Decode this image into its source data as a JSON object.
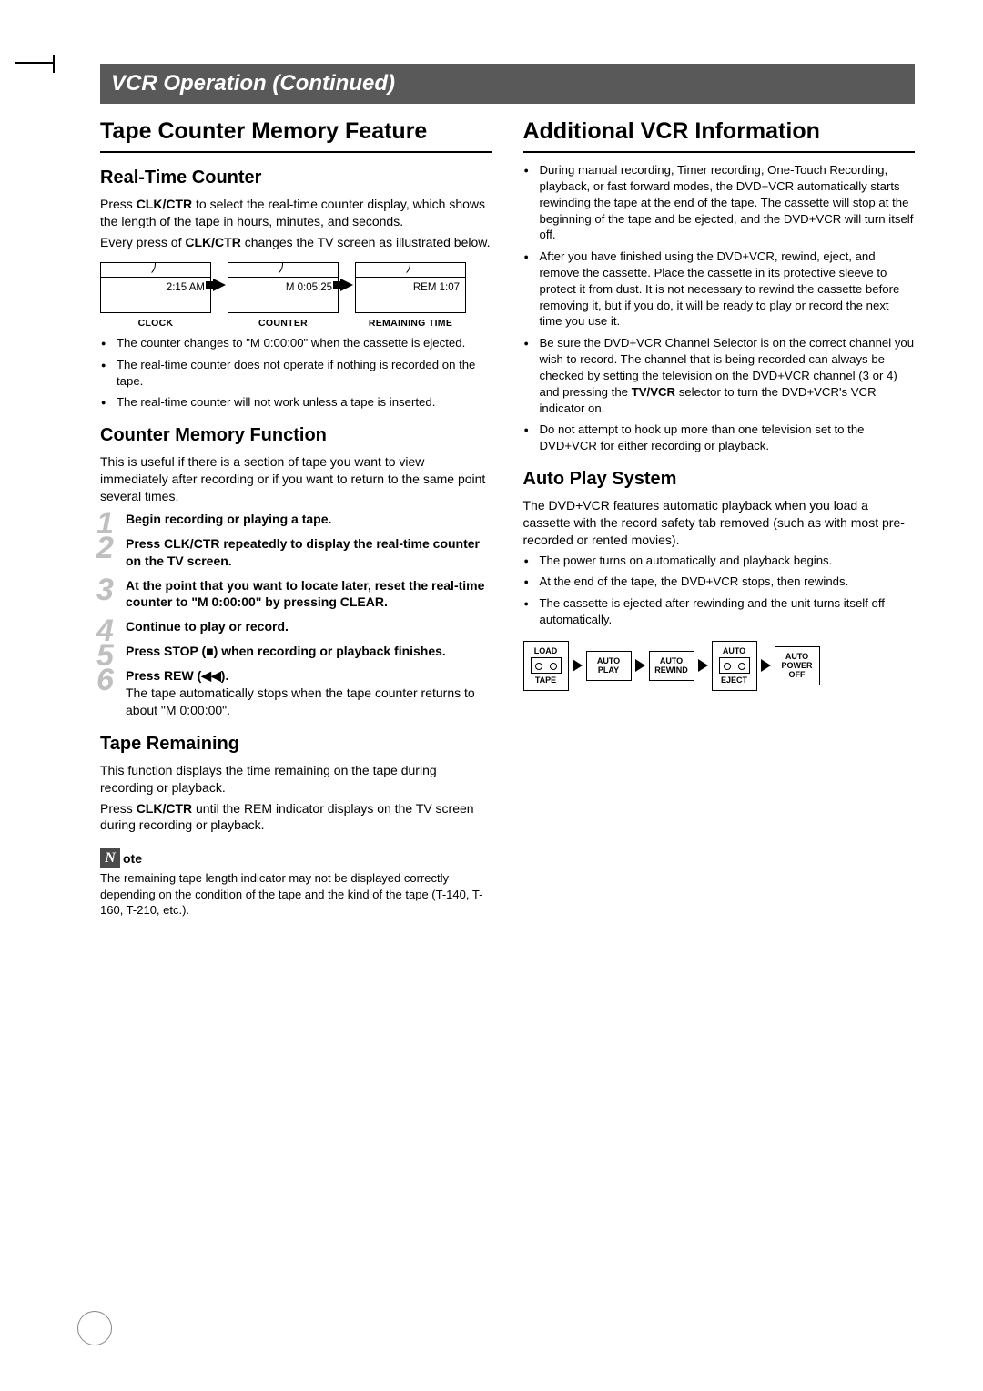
{
  "header": {
    "title": "VCR Operation (Continued)"
  },
  "left": {
    "section_title": "Tape Counter Memory Feature",
    "realtime": {
      "heading": "Real-Time Counter",
      "p1a": "Press ",
      "p1b": "CLK/CTR",
      "p1c": " to select the real-time counter display, which shows the length of the tape in hours, minutes, and seconds.",
      "p2a": "Every press of ",
      "p2b": "CLK/CTR",
      "p2c": " changes the TV screen as illustrated below.",
      "panels": [
        {
          "value": "2:15 AM",
          "label": "CLOCK"
        },
        {
          "value": "M 0:05:25",
          "label": "COUNTER"
        },
        {
          "value": "REM 1:07",
          "label": "REMAINING TIME"
        }
      ],
      "bullets": [
        "The counter changes to \"M 0:00:00\" when the cassette is ejected.",
        "The real-time counter does not operate if nothing is recorded on the tape.",
        "The real-time counter will not work unless a tape is inserted."
      ]
    },
    "memory": {
      "heading": "Counter Memory Function",
      "intro": "This is useful if there is a section of tape you want to view immediately after recording or if you want to return to the same point several times.",
      "steps": [
        {
          "n": "1",
          "bold": "Begin recording or playing a tape.",
          "rest": ""
        },
        {
          "n": "2",
          "bold": "Press CLK/CTR repeatedly to display the real-time counter on the TV screen.",
          "rest": ""
        },
        {
          "n": "3",
          "bold": "At the point that you want to locate later, reset the real-time counter to \"M 0:00:00\" by pressing CLEAR.",
          "rest": ""
        },
        {
          "n": "4",
          "bold": "Continue to play or record.",
          "rest": ""
        },
        {
          "n": "5",
          "bold": "Press STOP (■) when recording or playback finishes.",
          "rest": ""
        },
        {
          "n": "6",
          "bold": "Press REW (◀◀).",
          "rest": "The tape automatically stops when the tape counter returns to about \"M 0:00:00\"."
        }
      ]
    },
    "remaining": {
      "heading": "Tape Remaining",
      "p1": "This function displays the time remaining on the tape during recording or playback.",
      "p2a": "Press ",
      "p2b": "CLK/CTR",
      "p2c": " until the REM indicator displays on the TV screen during recording or playback."
    },
    "note": {
      "icon": "N",
      "suffix": "ote",
      "body": "The remaining tape length indicator may not be displayed correctly depending on the condition of the tape and the kind of the tape (T-140, T-160, T-210, etc.)."
    }
  },
  "right": {
    "section_title": "Additional VCR Information",
    "bullets": [
      "During manual recording, Timer recording, One-Touch Recording, playback, or fast forward modes, the DVD+VCR automatically starts rewinding the tape at the end of the tape. The cassette will stop at the beginning of the tape and be ejected, and the DVD+VCR will turn itself off.",
      "After you have finished using the DVD+VCR, rewind, eject, and remove the cassette. Place the cassette in its protective sleeve to protect it from dust. It is not necessary to rewind the cassette before removing it, but if you do, it will be ready to play or record the next time you use it.",
      "",
      "Do not attempt to hook up more than one television set to the DVD+VCR for either recording or playback."
    ],
    "bullet3": {
      "a": "Be sure the DVD+VCR Channel Selector is on the correct channel you wish to record. The channel that is being recorded can always be checked by setting the television on the DVD+VCR channel (3 or 4) and pressing the ",
      "b": "TV/VCR",
      "c": " selector to turn the DVD+VCR's VCR indicator on."
    },
    "autoplay": {
      "heading": "Auto Play System",
      "intro": "The DVD+VCR features automatic playback when you load a cassette with the record safety tab removed (such as with most pre-recorded or rented movies).",
      "bullets": [
        "The power turns on automatically and playback begins.",
        "At the end of the tape, the DVD+VCR stops, then rewinds.",
        "The cassette is ejected after rewinding and the unit turns itself off automatically."
      ],
      "flow": {
        "b1_top": "LOAD",
        "b1_bot": "TAPE",
        "b2": "AUTO\nPLAY",
        "b3": "AUTO\nREWIND",
        "b4_top": "AUTO",
        "b4_bot": "EJECT",
        "b5": "AUTO\nPOWER\nOFF"
      }
    }
  }
}
